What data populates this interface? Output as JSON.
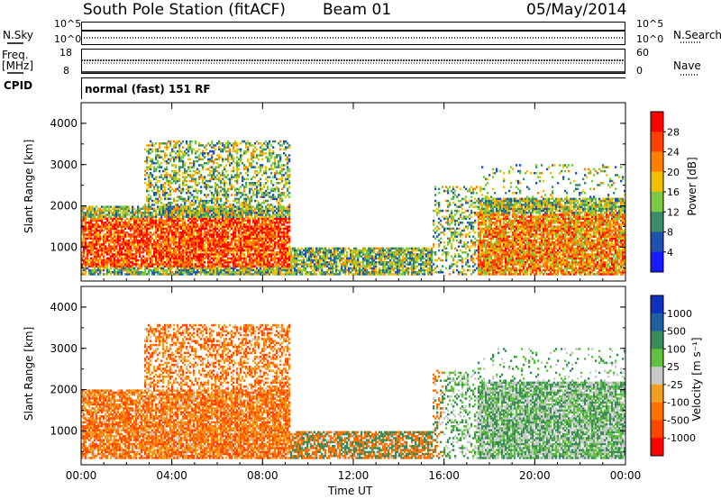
{
  "header": {
    "station": "South Pole Station (fitACF)",
    "beam": "Beam 01",
    "date": "05/May/2014"
  },
  "status_panels": {
    "nsky_label": "N.Sky",
    "nsearch_label": "N.Search",
    "freq_label": "Freq.",
    "freq_unit": "[MHz]",
    "nave_label": "Nave",
    "cpid_label": "CPID",
    "cpid_text": "normal (fast) 151 RF",
    "left_top_ticks": [
      "10^5",
      "10^0"
    ],
    "right_top_ticks": [
      "10^5",
      "10^0"
    ],
    "freq_ticks": [
      "18",
      "8"
    ],
    "nave_ticks": [
      "60",
      "0"
    ]
  },
  "colors": {
    "power_scale": [
      "#1a1aff",
      "#2050b0",
      "#3c8c6a",
      "#7ac943",
      "#f0c000",
      "#ff8000",
      "#ff4000",
      "#ff0000"
    ],
    "velocity_scale": [
      "#1030c0",
      "#2060a0",
      "#3a8a5a",
      "#60c040",
      "#c8c8c8",
      "#f0a020",
      "#ff7000",
      "#ff4500",
      "#ff0000"
    ]
  },
  "chart_data": [
    {
      "type": "heatmap",
      "name": "power",
      "xlabel": "Time UT",
      "ylabel": "Slant Range [km]",
      "x_ticks": [
        "00:00",
        "04:00",
        "08:00",
        "12:00",
        "16:00",
        "20:00",
        "00:00"
      ],
      "xlim_hours": [
        0,
        24
      ],
      "ylim": [
        180,
        4500
      ],
      "y_ticks": [
        1000,
        2000,
        3000,
        4000
      ],
      "colorbar": {
        "label": "Power [dB]",
        "ticks": [
          "4",
          "8",
          "12",
          "16",
          "20",
          "24",
          "28"
        ]
      }
    },
    {
      "type": "heatmap",
      "name": "velocity",
      "xlabel": "Time UT",
      "ylabel": "Slant Range [km]",
      "x_ticks": [
        "00:00",
        "04:00",
        "08:00",
        "12:00",
        "16:00",
        "20:00",
        "00:00"
      ],
      "xlim_hours": [
        0,
        24
      ],
      "ylim": [
        180,
        4500
      ],
      "y_ticks": [
        1000,
        2000,
        3000,
        4000
      ],
      "colorbar": {
        "label": "Velocity [m s⁻¹]",
        "ticks": [
          "1000",
          "500",
          "100",
          "25",
          "-25",
          "-100",
          "-500",
          "-1000"
        ]
      }
    }
  ],
  "footer": {
    "time_label": "Time UT"
  }
}
